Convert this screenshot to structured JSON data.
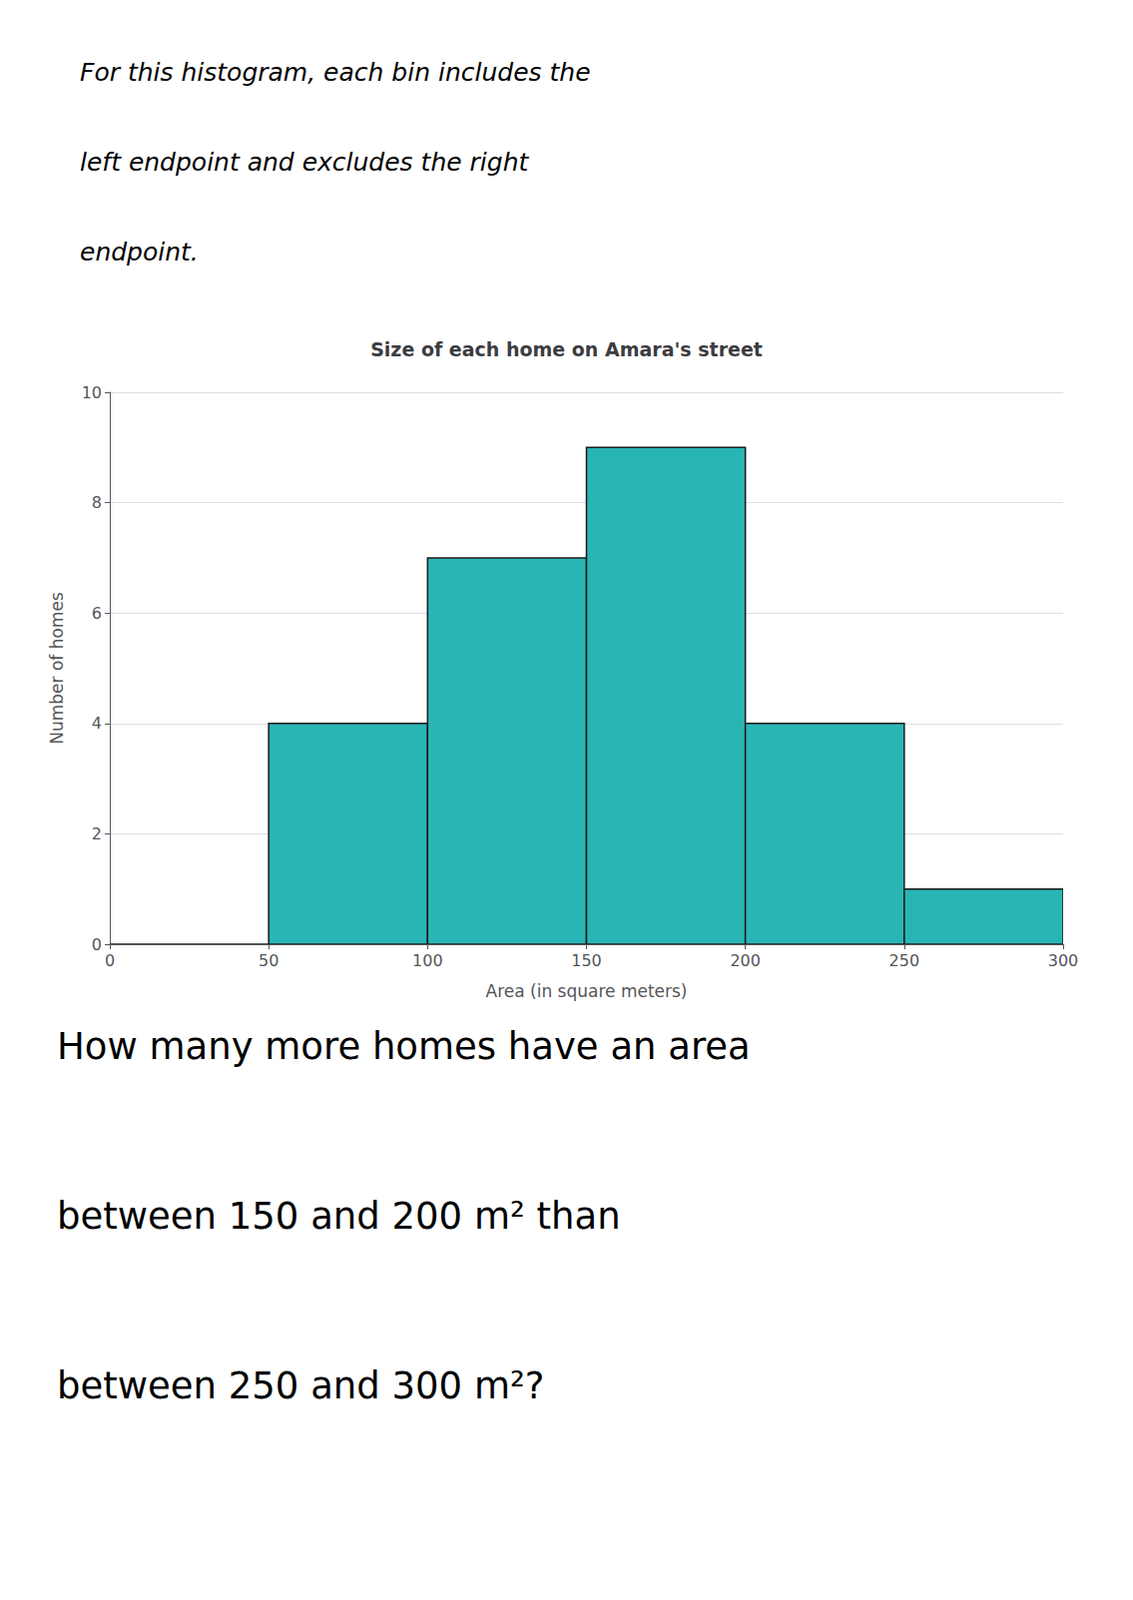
{
  "chart_data": {
    "type": "histogram",
    "title": "Size of each home on Amara's street",
    "xlabel": "Area (in square meters)",
    "ylabel": "Number of homes",
    "bins": [
      0,
      50,
      100,
      150,
      200,
      250,
      300
    ],
    "values": [
      0,
      4,
      7,
      9,
      4,
      1
    ],
    "color": "#2ab5b5",
    "xlim": [
      0,
      300
    ],
    "xticks": [
      0,
      50,
      100,
      150,
      200,
      250,
      300
    ],
    "ylim": [
      0,
      10
    ],
    "yticks": [
      0,
      2,
      4,
      6,
      8,
      10
    ],
    "grid": true,
    "annotations": [
      [
        "For this histogram, each bin includes the",
        "left endpoint and excludes the right",
        "endpoint."
      ],
      [
        "How many more homes have an area",
        "between 150 and 200 m² than",
        "between 250 and 300 m²?"
      ]
    ]
  }
}
